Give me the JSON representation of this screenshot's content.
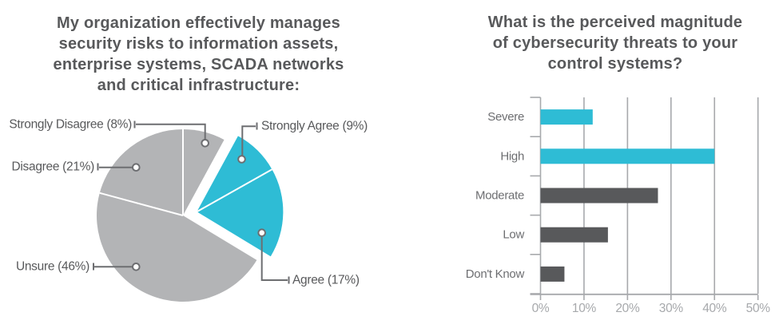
{
  "pie": {
    "title": "My organization effectively manages\nsecurity risks to information assets,\nenterprise systems, SCADA networks\nand critical infrastructure:"
  },
  "bar": {
    "title": "What is the perceived magnitude\nof cybersecurity threats to your\ncontrol systems?"
  },
  "colors": {
    "cyan": "#2EBCD5",
    "dark_gray": "#58595B",
    "pie_gray": "#B3B4B6",
    "leader_line": "#6D6E71",
    "grid": "#A7A9AC",
    "axis_label": "#A7A9AC",
    "category_label": "#6D6E71",
    "title_text": "#58595B",
    "divider": "#FFFFFF"
  },
  "chart_data": [
    {
      "type": "pie",
      "title": "My organization effectively manages security risks to information assets, enterprise systems, SCADA networks and critical infrastructure:",
      "start_angle_deg": 0,
      "clockwise": true,
      "slices": [
        {
          "label": "Strongly Disagree",
          "display": "Strongly Disagree (8%)",
          "value": 8,
          "color": "#B3B4B6",
          "exploded": false
        },
        {
          "label": "Strongly Agree",
          "display": "Strongly Agree (9%)",
          "value": 9,
          "color": "#2EBCD5",
          "exploded": true
        },
        {
          "label": "Agree",
          "display": "Agree (17%)",
          "value": 17,
          "color": "#2EBCD5",
          "exploded": true
        },
        {
          "label": "Unsure",
          "display": "Unsure (46%)",
          "value": 46,
          "color": "#B3B4B6",
          "exploded": false
        },
        {
          "label": "Disagree",
          "display": "Disagree (21%)",
          "value": 21,
          "color": "#B3B4B6",
          "exploded": false
        }
      ]
    },
    {
      "type": "bar",
      "orientation": "horizontal",
      "title": "What is the perceived magnitude of cybersecurity threats to your control systems?",
      "categories": [
        "Severe",
        "High",
        "Moderate",
        "Low",
        "Don't Know"
      ],
      "values": [
        12,
        40,
        27,
        15.5,
        5.5
      ],
      "bar_colors": [
        "#2EBCD5",
        "#2EBCD5",
        "#58595B",
        "#58595B",
        "#58595B"
      ],
      "xlim": [
        0,
        50
      ],
      "x_ticks": [
        {
          "value": 0,
          "label": "0%"
        },
        {
          "value": 10,
          "label": "10%"
        },
        {
          "value": 20,
          "label": "20%"
        },
        {
          "value": 30,
          "label": "30%"
        },
        {
          "value": 40,
          "label": "40%"
        },
        {
          "value": 50,
          "label": "50%"
        }
      ],
      "grid": true,
      "legend": false
    }
  ]
}
